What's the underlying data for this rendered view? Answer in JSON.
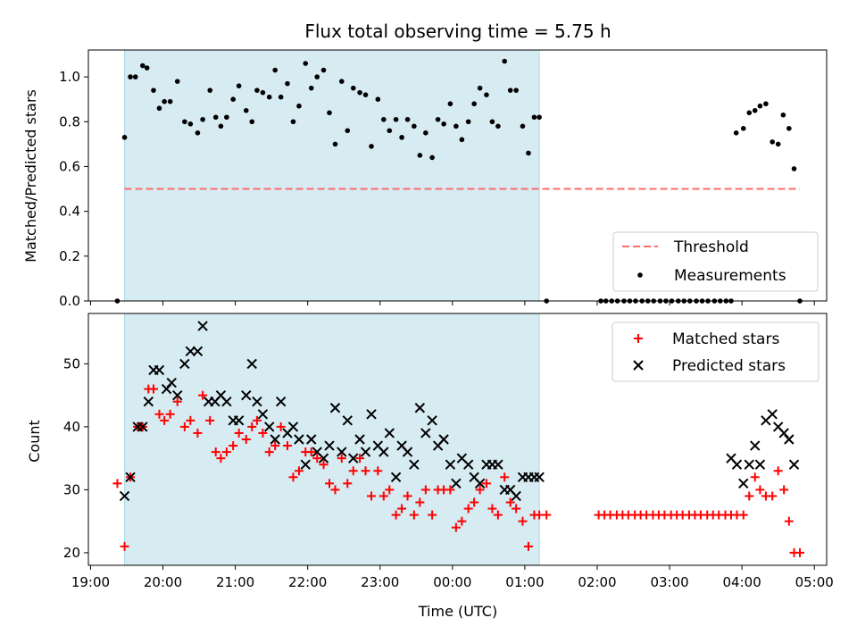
{
  "colors": {
    "band_fill": "#add8e6",
    "threshold": "#ff6b6b",
    "measurement": "#000000",
    "matched": "#ff0000",
    "predicted": "#000000"
  },
  "chart_data": [
    {
      "type": "scatter",
      "title": "Flux total observing time = 5.75 h",
      "xlabel": "",
      "ylabel": "Matched/Predicted stars",
      "ylim": [
        0,
        1.12
      ],
      "y_ticks": [
        "0.0",
        "0.2",
        "0.4",
        "0.6",
        "0.8",
        "1.0"
      ],
      "y_tick_values": [
        0,
        0.2,
        0.4,
        0.6,
        0.8,
        1.0
      ],
      "x_axis_kind": "time",
      "xlim_hours": [
        18.97,
        29.17
      ],
      "shaded_span_hours": [
        19.47,
        25.2
      ],
      "legend_position": "lower right",
      "threshold": {
        "name": "Threshold",
        "y": 0.5,
        "x_start_hours": 19.47,
        "x_end_hours": 28.8
      },
      "series": [
        {
          "name": "Measurements",
          "x_hours": [
            19.37,
            19.47,
            19.55,
            19.62,
            19.72,
            19.78,
            19.87,
            19.95,
            20.02,
            20.1,
            20.2,
            20.3,
            20.38,
            20.48,
            20.55,
            20.65,
            20.73,
            20.8,
            20.88,
            20.97,
            21.05,
            21.15,
            21.23,
            21.3,
            21.38,
            21.47,
            21.55,
            21.63,
            21.72,
            21.8,
            21.88,
            21.97,
            22.05,
            22.13,
            22.22,
            22.3,
            22.38,
            22.47,
            22.55,
            22.63,
            22.72,
            22.8,
            22.88,
            22.97,
            23.05,
            23.13,
            23.22,
            23.3,
            23.38,
            23.47,
            23.55,
            23.63,
            23.72,
            23.8,
            23.88,
            23.97,
            24.05,
            24.13,
            24.22,
            24.3,
            24.38,
            24.47,
            24.55,
            24.63,
            24.72,
            24.8,
            24.88,
            24.97,
            25.05,
            25.13,
            25.2,
            25.3,
            26.05,
            26.12,
            26.2,
            26.28,
            26.37,
            26.45,
            26.53,
            26.62,
            26.7,
            26.78,
            26.87,
            26.95,
            27.03,
            27.12,
            27.2,
            27.28,
            27.37,
            27.45,
            27.53,
            27.62,
            27.7,
            27.78,
            27.85,
            27.92,
            28.02,
            28.1,
            28.18,
            28.25,
            28.33,
            28.42,
            28.5,
            28.57,
            28.65,
            28.72,
            28.8
          ],
          "y": [
            0.0,
            0.73,
            1.0,
            1.0,
            1.05,
            1.04,
            0.94,
            0.86,
            0.89,
            0.89,
            0.98,
            0.8,
            0.79,
            0.75,
            0.81,
            0.94,
            0.82,
            0.78,
            0.82,
            0.9,
            0.96,
            0.85,
            0.8,
            0.94,
            0.93,
            0.91,
            1.03,
            0.91,
            0.97,
            0.8,
            0.87,
            1.06,
            0.95,
            1.0,
            1.03,
            0.84,
            0.7,
            0.98,
            0.76,
            0.95,
            0.93,
            0.92,
            0.69,
            0.9,
            0.81,
            0.76,
            0.81,
            0.73,
            0.81,
            0.78,
            0.65,
            0.75,
            0.64,
            0.81,
            0.79,
            0.88,
            0.78,
            0.72,
            0.8,
            0.88,
            0.95,
            0.92,
            0.8,
            0.78,
            1.07,
            0.94,
            0.94,
            0.78,
            0.66,
            0.82,
            0.82,
            0.0,
            0.0,
            0.0,
            0.0,
            0.0,
            0.0,
            0.0,
            0.0,
            0.0,
            0.0,
            0.0,
            0.0,
            0.0,
            0.0,
            0.0,
            0.0,
            0.0,
            0.0,
            0.0,
            0.0,
            0.0,
            0.0,
            0.0,
            0.0,
            0.75,
            0.77,
            0.84,
            0.85,
            0.87,
            0.88,
            0.71,
            0.7,
            0.83,
            0.77,
            0.59,
            0.0
          ]
        }
      ]
    },
    {
      "type": "scatter",
      "title": "",
      "xlabel": "Time (UTC)",
      "ylabel": "Count",
      "ylim": [
        18,
        58
      ],
      "y_ticks": [
        "20",
        "30",
        "40",
        "50"
      ],
      "y_tick_values": [
        20,
        30,
        40,
        50
      ],
      "x_axis_kind": "time",
      "xlim_hours": [
        18.97,
        29.17
      ],
      "x_tick_values_hours": [
        19,
        20,
        21,
        22,
        23,
        24,
        25,
        26,
        27,
        28,
        29
      ],
      "x_ticks": [
        "19:00",
        "20:00",
        "21:00",
        "22:00",
        "23:00",
        "00:00",
        "01:00",
        "02:00",
        "03:00",
        "04:00",
        "05:00"
      ],
      "shaded_span_hours": [
        19.47,
        25.2
      ],
      "legend_position": "upper right",
      "series": [
        {
          "name": "Matched stars",
          "marker": "plus",
          "points": [
            [
              19.37,
              31
            ],
            [
              19.47,
              21
            ],
            [
              19.55,
              32
            ],
            [
              19.65,
              40
            ],
            [
              19.72,
              40
            ],
            [
              19.8,
              46
            ],
            [
              19.87,
              46
            ],
            [
              19.95,
              42
            ],
            [
              20.02,
              41
            ],
            [
              20.1,
              42
            ],
            [
              20.2,
              44
            ],
            [
              20.3,
              40
            ],
            [
              20.38,
              41
            ],
            [
              20.48,
              39
            ],
            [
              20.55,
              45
            ],
            [
              20.65,
              41
            ],
            [
              20.73,
              36
            ],
            [
              20.8,
              35
            ],
            [
              20.88,
              36
            ],
            [
              20.97,
              37
            ],
            [
              21.05,
              39
            ],
            [
              21.15,
              38
            ],
            [
              21.23,
              40
            ],
            [
              21.3,
              41
            ],
            [
              21.38,
              39
            ],
            [
              21.47,
              36
            ],
            [
              21.55,
              37
            ],
            [
              21.63,
              40
            ],
            [
              21.72,
              37
            ],
            [
              21.8,
              32
            ],
            [
              21.88,
              33
            ],
            [
              21.97,
              36
            ],
            [
              22.05,
              36
            ],
            [
              22.13,
              35
            ],
            [
              22.22,
              34
            ],
            [
              22.3,
              31
            ],
            [
              22.38,
              30
            ],
            [
              22.47,
              35
            ],
            [
              22.55,
              31
            ],
            [
              22.63,
              33
            ],
            [
              22.72,
              35
            ],
            [
              22.8,
              33
            ],
            [
              22.88,
              29
            ],
            [
              22.97,
              33
            ],
            [
              23.05,
              29
            ],
            [
              23.13,
              30
            ],
            [
              23.22,
              26
            ],
            [
              23.3,
              27
            ],
            [
              23.38,
              29
            ],
            [
              23.47,
              26
            ],
            [
              23.55,
              28
            ],
            [
              23.63,
              30
            ],
            [
              23.72,
              26
            ],
            [
              23.8,
              30
            ],
            [
              23.88,
              30
            ],
            [
              23.97,
              30
            ],
            [
              24.05,
              24
            ],
            [
              24.13,
              25
            ],
            [
              24.22,
              27
            ],
            [
              24.3,
              28
            ],
            [
              24.38,
              30
            ],
            [
              24.47,
              31
            ],
            [
              24.55,
              27
            ],
            [
              24.63,
              26
            ],
            [
              24.72,
              32
            ],
            [
              24.8,
              28
            ],
            [
              24.88,
              27
            ],
            [
              24.97,
              25
            ],
            [
              25.05,
              21
            ],
            [
              25.13,
              26
            ],
            [
              25.2,
              26
            ],
            [
              25.3,
              26
            ],
            [
              26.02,
              26
            ],
            [
              26.1,
              26
            ],
            [
              26.18,
              26
            ],
            [
              26.27,
              26
            ],
            [
              26.35,
              26
            ],
            [
              26.43,
              26
            ],
            [
              26.52,
              26
            ],
            [
              26.6,
              26
            ],
            [
              26.68,
              26
            ],
            [
              26.77,
              26
            ],
            [
              26.85,
              26
            ],
            [
              26.93,
              26
            ],
            [
              27.02,
              26
            ],
            [
              27.1,
              26
            ],
            [
              27.18,
              26
            ],
            [
              27.27,
              26
            ],
            [
              27.35,
              26
            ],
            [
              27.43,
              26
            ],
            [
              27.52,
              26
            ],
            [
              27.6,
              26
            ],
            [
              27.68,
              26
            ],
            [
              27.77,
              26
            ],
            [
              27.85,
              26
            ],
            [
              27.93,
              26
            ],
            [
              28.02,
              26
            ],
            [
              28.1,
              29
            ],
            [
              28.18,
              32
            ],
            [
              28.25,
              30
            ],
            [
              28.33,
              29
            ],
            [
              28.42,
              29
            ],
            [
              28.5,
              33
            ],
            [
              28.58,
              30
            ],
            [
              28.65,
              25
            ],
            [
              28.72,
              20
            ],
            [
              28.8,
              20
            ]
          ]
        },
        {
          "name": "Predicted stars",
          "marker": "x",
          "points": [
            [
              19.47,
              29
            ],
            [
              19.55,
              32
            ],
            [
              19.65,
              40
            ],
            [
              19.72,
              40
            ],
            [
              19.8,
              44
            ],
            [
              19.87,
              49
            ],
            [
              19.95,
              49
            ],
            [
              20.05,
              46
            ],
            [
              20.12,
              47
            ],
            [
              20.2,
              45
            ],
            [
              20.3,
              50
            ],
            [
              20.38,
              52
            ],
            [
              20.48,
              52
            ],
            [
              20.55,
              56
            ],
            [
              20.63,
              44
            ],
            [
              20.72,
              44
            ],
            [
              20.8,
              45
            ],
            [
              20.88,
              44
            ],
            [
              20.97,
              41
            ],
            [
              21.05,
              41
            ],
            [
              21.15,
              45
            ],
            [
              21.23,
              50
            ],
            [
              21.3,
              44
            ],
            [
              21.38,
              42
            ],
            [
              21.47,
              40
            ],
            [
              21.55,
              38
            ],
            [
              21.63,
              44
            ],
            [
              21.72,
              39
            ],
            [
              21.8,
              40
            ],
            [
              21.88,
              38
            ],
            [
              21.97,
              34
            ],
            [
              22.05,
              38
            ],
            [
              22.13,
              36
            ],
            [
              22.22,
              35
            ],
            [
              22.3,
              37
            ],
            [
              22.38,
              43
            ],
            [
              22.47,
              36
            ],
            [
              22.55,
              41
            ],
            [
              22.63,
              35
            ],
            [
              22.72,
              38
            ],
            [
              22.8,
              36
            ],
            [
              22.88,
              42
            ],
            [
              22.97,
              37
            ],
            [
              23.05,
              36
            ],
            [
              23.13,
              39
            ],
            [
              23.22,
              32
            ],
            [
              23.3,
              37
            ],
            [
              23.38,
              36
            ],
            [
              23.47,
              34
            ],
            [
              23.55,
              43
            ],
            [
              23.63,
              39
            ],
            [
              23.72,
              41
            ],
            [
              23.8,
              37
            ],
            [
              23.88,
              38
            ],
            [
              23.97,
              34
            ],
            [
              24.05,
              31
            ],
            [
              24.13,
              35
            ],
            [
              24.22,
              34
            ],
            [
              24.3,
              32
            ],
            [
              24.38,
              31
            ],
            [
              24.47,
              34
            ],
            [
              24.55,
              34
            ],
            [
              24.63,
              34
            ],
            [
              24.72,
              30
            ],
            [
              24.8,
              30
            ],
            [
              24.88,
              29
            ],
            [
              24.97,
              32
            ],
            [
              25.05,
              32
            ],
            [
              25.13,
              32
            ],
            [
              25.2,
              32
            ],
            [
              27.85,
              35
            ],
            [
              27.93,
              34
            ],
            [
              28.02,
              31
            ],
            [
              28.1,
              34
            ],
            [
              28.18,
              37
            ],
            [
              28.25,
              34
            ],
            [
              28.33,
              41
            ],
            [
              28.42,
              42
            ],
            [
              28.5,
              40
            ],
            [
              28.58,
              39
            ],
            [
              28.65,
              38
            ],
            [
              28.72,
              34
            ]
          ]
        }
      ]
    }
  ]
}
